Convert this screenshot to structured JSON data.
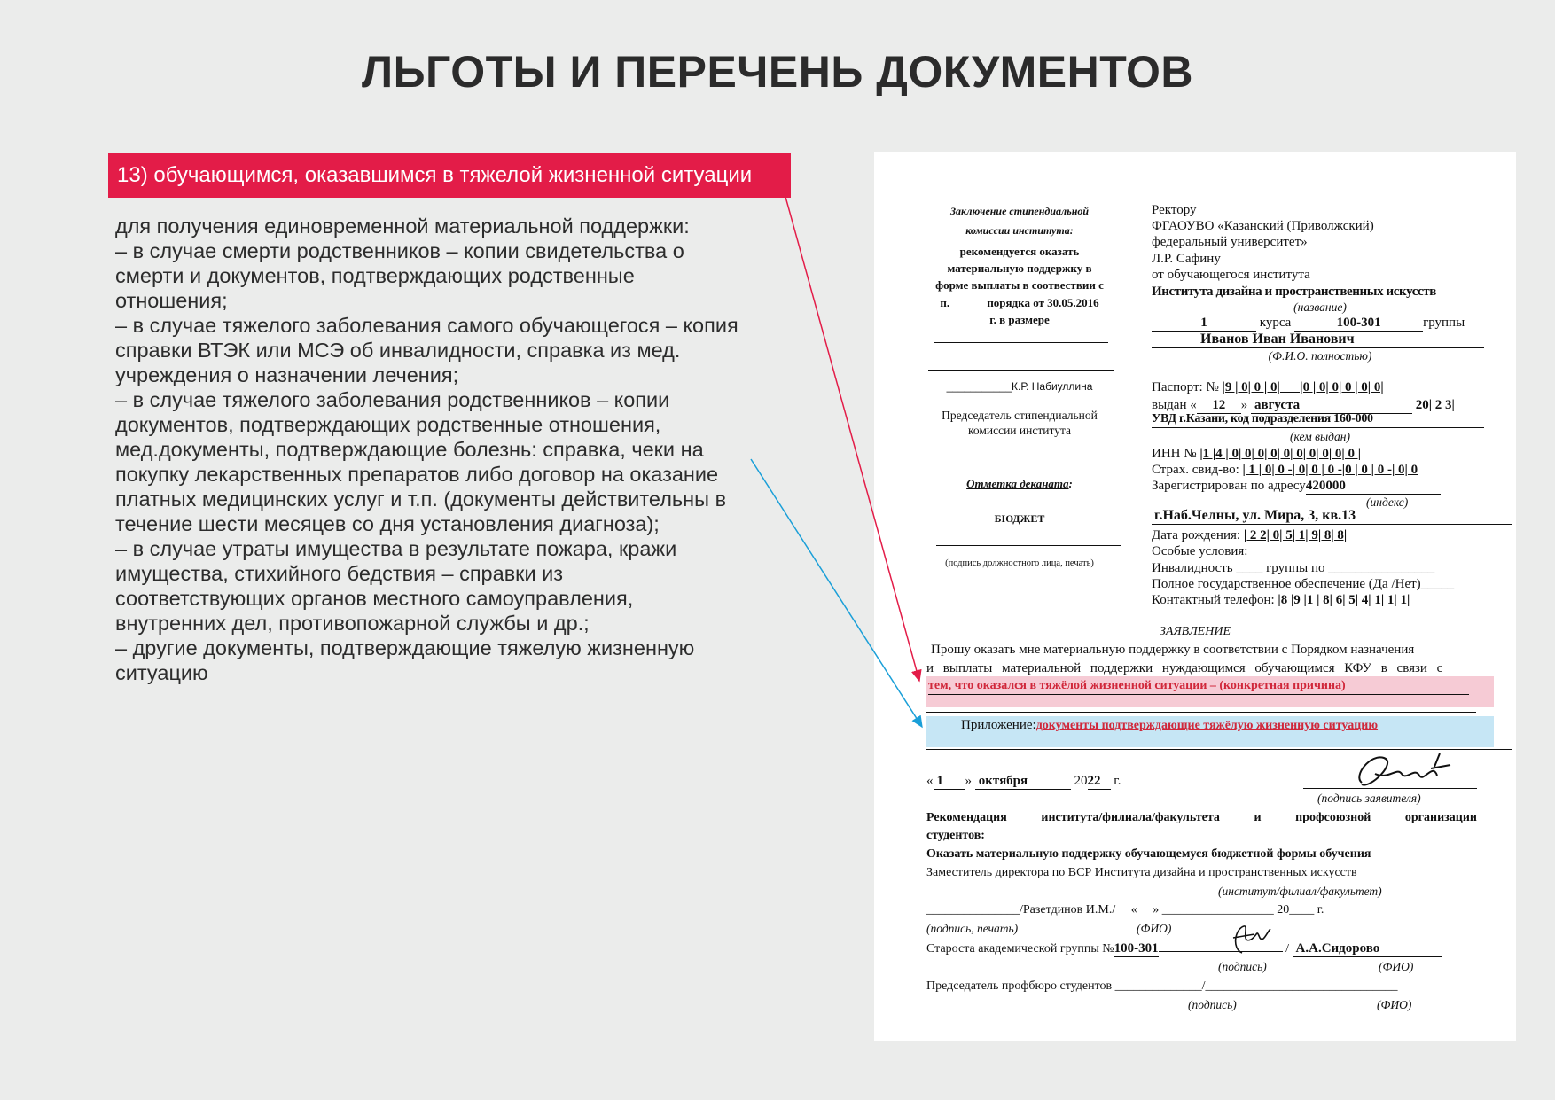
{
  "page": {
    "title": "ЛЬГОТЫ И ПЕРЕЧЕНЬ ДОКУМЕНТОВ",
    "banner": "13) обучающимся, оказавшимся в тяжелой жизненной ситуации",
    "accent": "#e31c48",
    "arrow_blue": "#1a9fd8",
    "body_lines": [
      "для получения единовременной материальной поддержки:",
      "– в случае смерти родственников – копии свидетельства о",
      "смерти и документов, подтверждающих родственные",
      "отношения;",
      "– в случае тяжелого заболевания самого обучающегося – копия",
      "справки ВТЭК или МСЭ об инвалидности, справка из мед.",
      "учреждения о назначении лечения;",
      "– в случае тяжелого заболевания родственников – копии",
      "документов, подтверждающих родственные отношения,",
      "мед.документы, подтверждающие болезнь: справка, чеки на",
      "покупку лекарственных препаратов либо договор на оказание",
      "платных медицинских услуг и т.п. (документы действительны в",
      "течение шести месяцев со дня установления диагноза);",
      "– в случае утраты имущества в результате пожара, кражи",
      "имущества, стихийного  бедствия – справки из",
      "соответствующих органов местного самоуправления,",
      "внутренних дел, противопожарной службы и др.;",
      "– другие документы, подтверждающие тяжелую жизненную",
      "ситуацию"
    ]
  },
  "doc": {
    "left": {
      "h1": "Заключение стипендиальной",
      "h2": "комиссии института:",
      "r1": "рекомендуется оказать",
      "r2": "материальную поддержку в",
      "r3": "форме выплаты в соотвествии с",
      "r4": "п.______ порядка от 30.05.2016",
      "r5": "г. в размере",
      "sign": "___________К.Р. Набиуллина",
      "chair1": "Председатель стипендиальной",
      "chair2": "комиссии института",
      "dean": "Отметка деканата",
      "budget": "БЮДЖЕТ",
      "sig_note": "(подпись должностного лица, печать)"
    },
    "right": {
      "l1": "Ректору",
      "l2": "ФГАОУВО «Казанский (Приволжский)",
      "l3": "федеральный университет»",
      "l4": "Л.Р. Сафину",
      "l5": "от обучающегося института",
      "inst": "Института дизайна и пространственных искусств",
      "inst_note": "(название)",
      "course": "1",
      "course_label": "курса",
      "group": "100-301",
      "group_label": "группы",
      "fio": "Иванов Иван Иванович",
      "fio_note": "(Ф.И.О. полностью)",
      "passport_label": "Паспорт: №",
      "passport": "|9 | 0| 0 | 0|      |0 | 0| 0| 0 | 0| 0|",
      "issued_label": "выдан «",
      "issued_day": "12",
      "issued_month": "августа",
      "issued_year": "20| 2 3|",
      "issued_by": "УВД г.Казани, код подразделения 160-000",
      "issued_by_note": "(кем выдан)",
      "inn_label": "ИНН №",
      "inn": "|1 |4 | 0| 0| 0| 0| 0| 0| 0| 0| 0| 0 |",
      "snils_label": "Страх. свид-во:",
      "snils": "| 1 | 0| 0 -| 0| 0 | 0 -|0 | 0 | 0 -| 0| 0",
      "reg_label": "Зарегистрирован по адресу",
      "reg_index": "420000",
      "index_note": "(индекс)",
      "address": "г.Наб.Челны, ул. Мира, 3, кв.13",
      "birth_label": "Дата рождения:",
      "birth": "| 2 2| 0| 5| 1| 9| 8| 8|",
      "special": "Особые условия:",
      "disability": "Инвалидность ____ группы по ________________",
      "state": "Полное государственное обеспечение (Да /Нет)_____",
      "phone_label": "Контактный телефон:",
      "phone": "|8 |9 |1 | 8| 6| 5| 4| 1| 1| 1|"
    },
    "statement": {
      "heading": "ЗАЯВЛЕНИЕ",
      "p1": "Прошу оказать мне материальную поддержку в соответствии с Порядком назначения",
      "p2": "и выплаты материальной поддержки нуждающимся обучающимся КФУ в связи с",
      "reason": "тем, что оказался в тяжёлой жизненной ситуации – (конкретная причина)",
      "attach_label": "Приложение:",
      "attach": "документы подтверждающие тяжёлую жизненную ситуацию",
      "date_day": "1",
      "date_month": "октября",
      "date_year": "22",
      "date_suffix": "г.",
      "applicant_note": "(подпись заявителя)",
      "reason_bg": "#f6cbd5",
      "attach_bg": "#c6e6f5"
    },
    "rec": {
      "h1": "Рекомендация института/филиала/факультета и профсоюзной организации",
      "h2": "студентов:",
      "text": "Оказать материальную поддержку обучающемуся бюджетной формы обучения",
      "deputy": "Заместитель директора по ВСР Института дизайна и пространственных искусств",
      "inst_note": "(институт/филиал/факультет)",
      "deputy_sign": "_______________/Разетдинов И.М./     «     » __________________ 20____ г.",
      "sign_note": "(подпись, печать)",
      "fio_note": "(ФИО)",
      "head_label": "Староста академической группы №",
      "head_group": "100-301",
      "head_name": "А.А.Сидорово",
      "sig": "(подпись)",
      "fio": "(ФИО)",
      "union": "Председатель профбюро студентов ______________/_______________________________"
    }
  }
}
